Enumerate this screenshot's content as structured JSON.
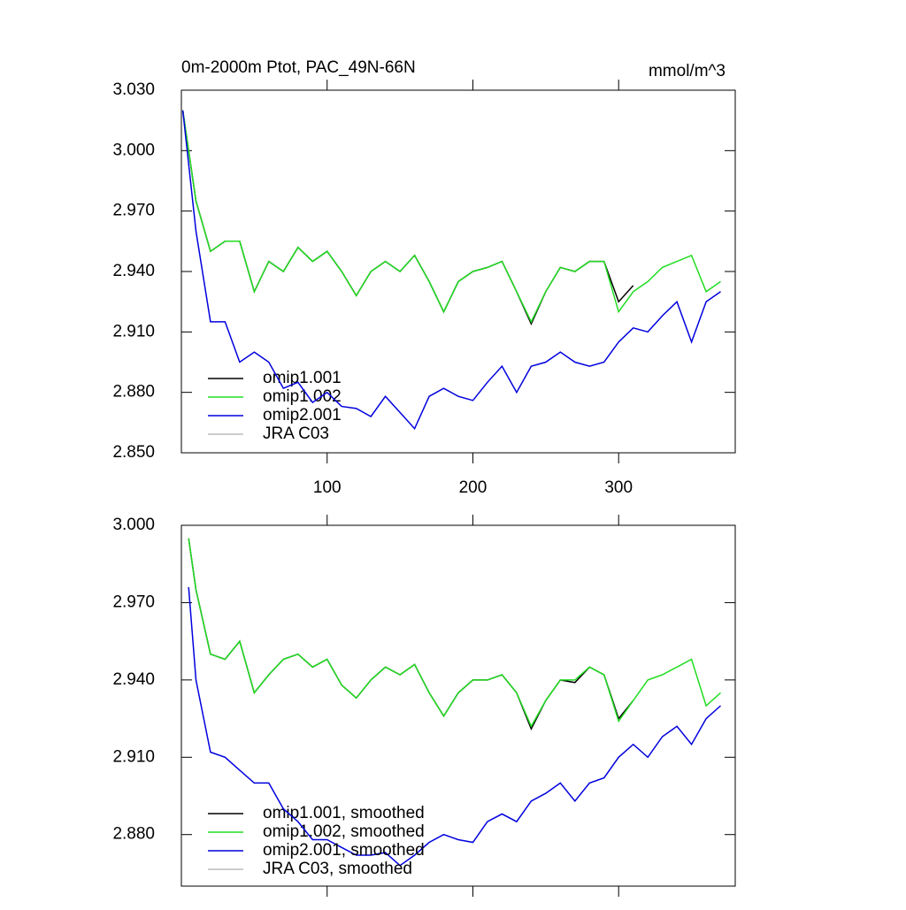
{
  "chart_data": [
    {
      "type": "line",
      "title": "0m-2000m Ptot, PAC_49N-66N",
      "units": "mmol/m^3",
      "x": [
        1,
        10,
        20,
        30,
        40,
        50,
        60,
        70,
        80,
        90,
        100,
        110,
        120,
        130,
        140,
        150,
        160,
        170,
        180,
        190,
        200,
        210,
        220,
        230,
        240,
        250,
        260,
        270,
        280,
        290,
        300,
        310,
        320,
        330,
        340,
        350,
        360,
        370
      ],
      "xlim": [
        0,
        380
      ],
      "xticks": [
        100,
        200,
        300
      ],
      "ylim": [
        2.85,
        3.03
      ],
      "yticks": [
        {
          "value": 2.85,
          "label": "2.850"
        },
        {
          "value": 2.88,
          "label": "2.880"
        },
        {
          "value": 2.91,
          "label": "2.910"
        },
        {
          "value": 2.94,
          "label": "2.940"
        },
        {
          "value": 2.97,
          "label": "2.970"
        },
        {
          "value": 3.0,
          "label": "3.000"
        },
        {
          "value": 3.03,
          "label": "3.030"
        }
      ],
      "series": [
        {
          "name": "omip1.001",
          "color": "#000000",
          "values": [
            3.02,
            2.975,
            2.95,
            2.955,
            2.955,
            2.93,
            2.945,
            2.94,
            2.952,
            2.945,
            2.95,
            2.94,
            2.928,
            2.94,
            2.945,
            2.94,
            2.948,
            2.935,
            2.92,
            2.935,
            2.94,
            2.942,
            2.945,
            2.93,
            2.914,
            2.93,
            2.942,
            2.94,
            2.945,
            2.945,
            2.925,
            2.933,
            null,
            null,
            null,
            null,
            null,
            null
          ]
        },
        {
          "name": "omip1.002",
          "color": "#22dd22",
          "values": [
            3.02,
            2.975,
            2.95,
            2.955,
            2.955,
            2.93,
            2.945,
            2.94,
            2.952,
            2.945,
            2.95,
            2.94,
            2.928,
            2.94,
            2.945,
            2.94,
            2.948,
            2.935,
            2.92,
            2.935,
            2.94,
            2.942,
            2.945,
            2.93,
            2.915,
            2.93,
            2.942,
            2.94,
            2.945,
            2.945,
            2.92,
            2.93,
            2.935,
            2.942,
            2.945,
            2.948,
            2.93,
            2.935
          ]
        },
        {
          "name": "omip2.001",
          "color": "#0000dd",
          "values": [
            3.02,
            2.96,
            2.915,
            2.915,
            2.895,
            2.9,
            2.895,
            2.882,
            2.885,
            2.875,
            2.88,
            2.873,
            2.872,
            2.868,
            2.878,
            2.87,
            2.862,
            2.878,
            2.882,
            2.878,
            2.876,
            2.885,
            2.893,
            2.88,
            2.893,
            2.895,
            2.9,
            2.895,
            2.893,
            2.895,
            2.905,
            2.912,
            2.91,
            2.918,
            2.925,
            2.905,
            2.925,
            2.93
          ]
        },
        {
          "name": "JRA C03",
          "color": "#bbbbbb",
          "values": [
            null,
            null,
            null,
            null,
            null,
            null,
            null,
            null,
            null,
            null,
            null,
            null,
            null,
            null,
            null,
            null,
            null,
            null,
            null,
            null,
            null,
            null,
            null,
            null,
            null,
            null,
            null,
            null,
            null,
            null,
            null,
            null,
            null,
            null,
            null,
            null,
            null,
            null
          ]
        }
      ]
    },
    {
      "type": "line",
      "x": [
        5,
        10,
        20,
        30,
        40,
        50,
        60,
        70,
        80,
        90,
        100,
        110,
        120,
        130,
        140,
        150,
        160,
        170,
        180,
        190,
        200,
        210,
        220,
        230,
        240,
        250,
        260,
        270,
        280,
        290,
        300,
        310,
        320,
        330,
        340,
        350,
        360,
        370
      ],
      "xlim": [
        0,
        380
      ],
      "xticks": [
        100,
        200,
        300
      ],
      "ylim": [
        2.86,
        3.0
      ],
      "yticks": [
        {
          "value": 2.88,
          "label": "2.880"
        },
        {
          "value": 2.91,
          "label": "2.910"
        },
        {
          "value": 2.94,
          "label": "2.940"
        },
        {
          "value": 2.97,
          "label": "2.970"
        },
        {
          "value": 3.0,
          "label": "3.000"
        }
      ],
      "series": [
        {
          "name": "omip1.001, smoothed",
          "color": "#000000",
          "values": [
            2.995,
            2.975,
            2.95,
            2.948,
            2.955,
            2.935,
            2.942,
            2.948,
            2.95,
            2.945,
            2.948,
            2.938,
            2.933,
            2.94,
            2.945,
            2.942,
            2.946,
            2.935,
            2.926,
            2.935,
            2.94,
            2.94,
            2.942,
            2.935,
            2.921,
            2.932,
            2.94,
            2.939,
            2.945,
            2.942,
            2.925,
            2.932,
            null,
            null,
            null,
            null,
            null,
            null
          ]
        },
        {
          "name": "omip1.002, smoothed",
          "color": "#22dd22",
          "values": [
            2.995,
            2.975,
            2.95,
            2.948,
            2.955,
            2.935,
            2.942,
            2.948,
            2.95,
            2.945,
            2.948,
            2.938,
            2.933,
            2.94,
            2.945,
            2.942,
            2.946,
            2.935,
            2.926,
            2.935,
            2.94,
            2.94,
            2.942,
            2.935,
            2.922,
            2.932,
            2.94,
            2.94,
            2.945,
            2.942,
            2.924,
            2.932,
            2.94,
            2.942,
            2.945,
            2.948,
            2.93,
            2.935
          ]
        },
        {
          "name": "omip2.001, smoothed",
          "color": "#0000dd",
          "values": [
            2.976,
            2.94,
            2.912,
            2.91,
            2.905,
            2.9,
            2.9,
            2.89,
            2.885,
            2.878,
            2.878,
            2.875,
            2.872,
            2.872,
            2.873,
            2.868,
            2.872,
            2.877,
            2.88,
            2.878,
            2.877,
            2.885,
            2.888,
            2.885,
            2.893,
            2.896,
            2.9,
            2.893,
            2.9,
            2.902,
            2.91,
            2.915,
            2.91,
            2.918,
            2.922,
            2.915,
            2.925,
            2.93
          ]
        },
        {
          "name": "JRA C03, smoothed",
          "color": "#bbbbbb",
          "values": [
            null,
            null,
            null,
            null,
            null,
            null,
            null,
            null,
            null,
            null,
            null,
            null,
            null,
            null,
            null,
            null,
            null,
            null,
            null,
            null,
            null,
            null,
            null,
            null,
            null,
            null,
            null,
            null,
            null,
            null,
            null,
            null,
            null,
            null,
            null,
            null,
            null,
            null
          ]
        }
      ]
    }
  ]
}
